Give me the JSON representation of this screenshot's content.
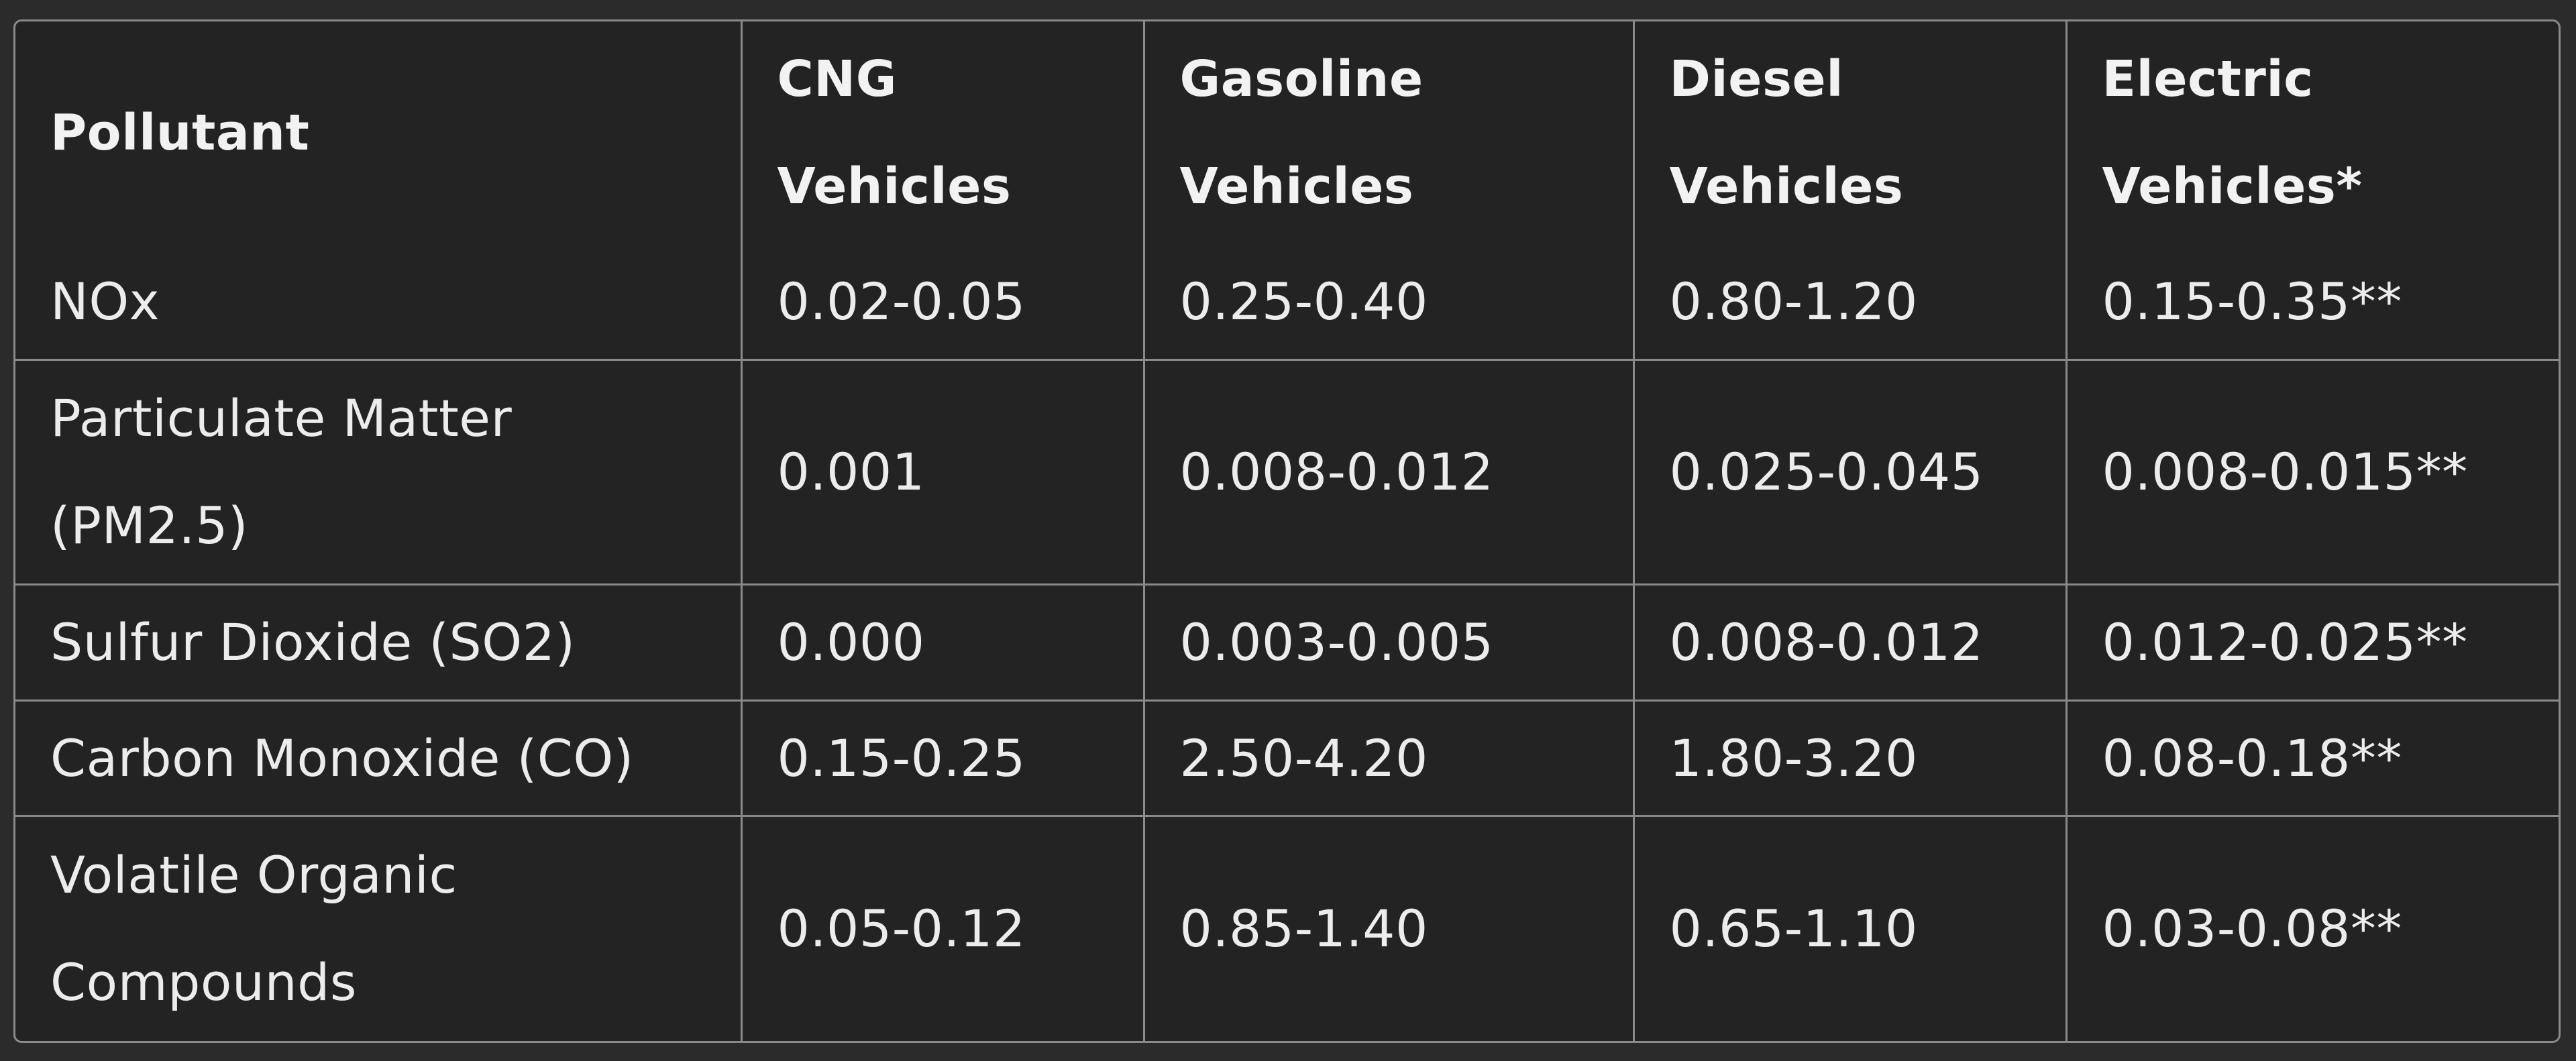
{
  "table": {
    "columns": [
      "Pollutant",
      "CNG Vehicles",
      "Gasoline Vehicles",
      "Diesel Vehicles",
      "Electric Vehicles*"
    ],
    "rows": [
      [
        "NOx",
        "0.02-0.05",
        "0.25-0.40",
        "0.80-1.20",
        "0.15-0.35**"
      ],
      [
        "Particulate Matter (PM2.5)",
        "0.001",
        "0.008-0.012",
        "0.025-0.045",
        "0.008-0.015**"
      ],
      [
        "Sulfur Dioxide (SO2)",
        "0.000",
        "0.003-0.005",
        "0.008-0.012",
        "0.012-0.025**"
      ],
      [
        "Carbon Monoxide (CO)",
        "0.15-0.25",
        "2.50-4.20",
        "1.80-3.20",
        "0.08-0.18**"
      ],
      [
        "Volatile Organic Compounds",
        "0.05-0.12",
        "0.85-1.40",
        "0.65-1.10",
        "0.03-0.08**"
      ]
    ]
  },
  "colors": {
    "background": "#2b2b2b",
    "cell_background": "#232323",
    "border": "#8a8a8a",
    "text": "#ececec"
  }
}
